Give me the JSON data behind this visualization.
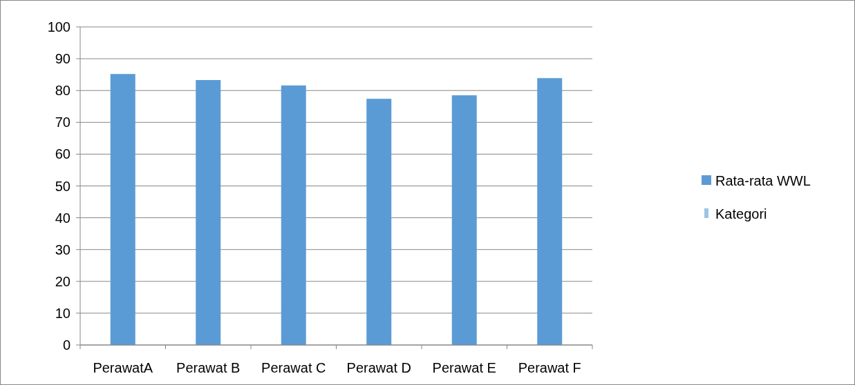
{
  "chart_data": {
    "type": "bar",
    "categories": [
      "PerawatA",
      "Perawat B",
      "Perawat C",
      "Perawat D",
      "Perawat E",
      "Perawat F"
    ],
    "series": [
      {
        "name": "Rata-rata WWL",
        "color": "#5b9bd5",
        "values": [
          85.2,
          83.3,
          81.6,
          77.4,
          78.5,
          83.9
        ]
      },
      {
        "name": "Kategori",
        "color": "#9dc3e6",
        "values": [
          null,
          null,
          null,
          null,
          null,
          null
        ]
      }
    ],
    "ylim": [
      0,
      100
    ],
    "yticks": [
      0,
      10,
      20,
      30,
      40,
      50,
      60,
      70,
      80,
      90,
      100
    ],
    "grid": "y",
    "legend": "right"
  }
}
